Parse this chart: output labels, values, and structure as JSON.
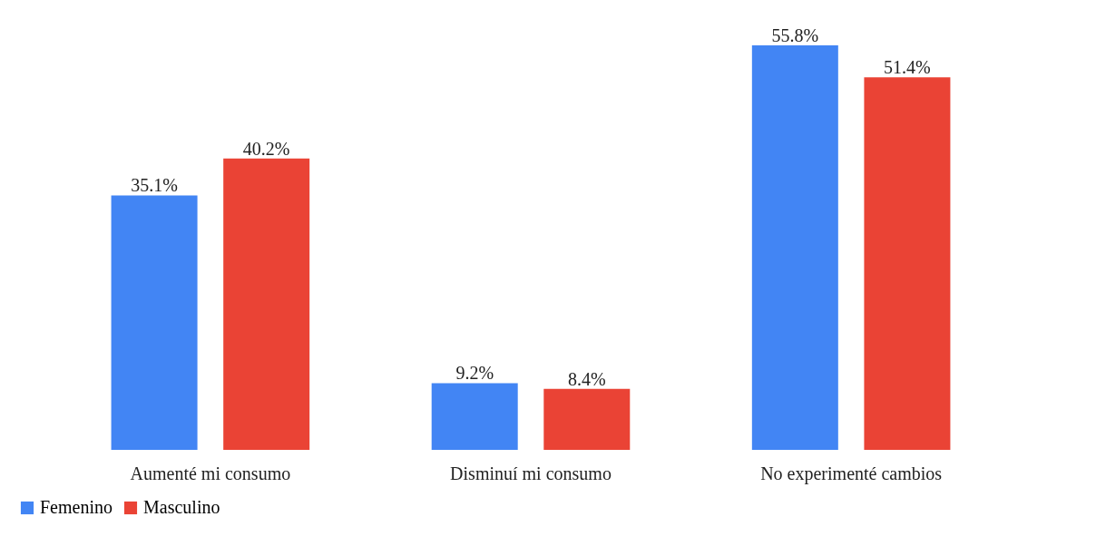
{
  "chart_data": {
    "type": "bar",
    "categories": [
      "Aumenté mi consumo",
      "Disminuí mi consumo",
      "No experimenté cambios"
    ],
    "series": [
      {
        "name": "Femenino",
        "color": "#4285f4",
        "values": [
          35.1,
          9.2,
          55.8
        ],
        "value_labels": [
          "35.1%",
          "9.2%",
          "55.8%"
        ]
      },
      {
        "name": "Masculino",
        "color": "#ea4335",
        "values": [
          40.2,
          8.4,
          51.4
        ],
        "value_labels": [
          "40.2%",
          "8.4%",
          "51.4%"
        ]
      }
    ],
    "legend": "bottom",
    "grid": false
  }
}
